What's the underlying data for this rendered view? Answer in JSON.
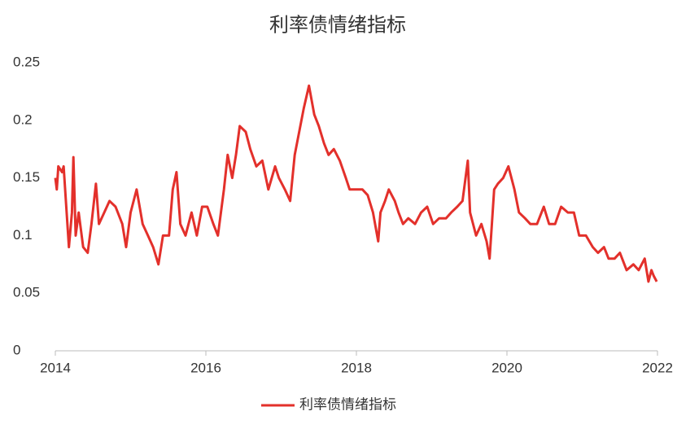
{
  "chart_data": {
    "type": "line",
    "title": "利率债情绪指标",
    "x": [
      2014.0,
      2014.02,
      2014.04,
      2014.09,
      2014.11,
      2014.15,
      2014.18,
      2014.22,
      2014.24,
      2014.27,
      2014.31,
      2014.37,
      2014.43,
      2014.48,
      2014.54,
      2014.58,
      2014.65,
      2014.72,
      2014.8,
      2014.89,
      2014.94,
      2015.0,
      2015.08,
      2015.16,
      2015.23,
      2015.3,
      2015.37,
      2015.43,
      2015.51,
      2015.56,
      2015.61,
      2015.66,
      2015.73,
      2015.81,
      2015.88,
      2015.95,
      2016.02,
      2016.1,
      2016.16,
      2016.24,
      2016.29,
      2016.35,
      2016.4,
      2016.45,
      2016.53,
      2016.59,
      2016.67,
      2016.75,
      2016.83,
      2016.92,
      2016.97,
      2017.05,
      2017.12,
      2017.18,
      2017.24,
      2017.3,
      2017.37,
      2017.44,
      2017.5,
      2017.57,
      2017.63,
      2017.7,
      2017.78,
      2017.86,
      2017.91,
      2018.0,
      2018.08,
      2018.15,
      2018.22,
      2018.29,
      2018.32,
      2018.38,
      2018.43,
      2018.51,
      2018.56,
      2018.62,
      2018.69,
      2018.78,
      2018.86,
      2018.94,
      2019.02,
      2019.1,
      2019.19,
      2019.26,
      2019.34,
      2019.41,
      2019.48,
      2019.51,
      2019.59,
      2019.66,
      2019.73,
      2019.77,
      2019.83,
      2019.88,
      2019.95,
      2020.02,
      2020.1,
      2020.16,
      2020.24,
      2020.31,
      2020.4,
      2020.49,
      2020.56,
      2020.64,
      2020.72,
      2020.81,
      2020.89,
      2020.96,
      2021.05,
      2021.14,
      2021.21,
      2021.29,
      2021.35,
      2021.43,
      2021.5,
      2021.59,
      2021.68,
      2021.75,
      2021.83,
      2021.88,
      2021.92,
      2021.95,
      2021.99
    ],
    "series": [
      {
        "name": "利率债情绪指标",
        "color": "#e3302b",
        "values": [
          0.15,
          0.14,
          0.16,
          0.155,
          0.16,
          0.12,
          0.09,
          0.12,
          0.168,
          0.1,
          0.12,
          0.09,
          0.085,
          0.11,
          0.145,
          0.11,
          0.12,
          0.13,
          0.125,
          0.11,
          0.09,
          0.12,
          0.14,
          0.11,
          0.1,
          0.09,
          0.075,
          0.1,
          0.1,
          0.14,
          0.155,
          0.11,
          0.1,
          0.12,
          0.1,
          0.125,
          0.125,
          0.11,
          0.1,
          0.14,
          0.17,
          0.15,
          0.17,
          0.195,
          0.19,
          0.175,
          0.16,
          0.165,
          0.14,
          0.16,
          0.15,
          0.14,
          0.13,
          0.17,
          0.19,
          0.21,
          0.23,
          0.205,
          0.195,
          0.18,
          0.17,
          0.175,
          0.165,
          0.15,
          0.14,
          0.14,
          0.14,
          0.135,
          0.12,
          0.095,
          0.12,
          0.13,
          0.14,
          0.13,
          0.12,
          0.11,
          0.115,
          0.11,
          0.12,
          0.125,
          0.11,
          0.115,
          0.115,
          0.12,
          0.125,
          0.13,
          0.165,
          0.12,
          0.1,
          0.11,
          0.095,
          0.08,
          0.14,
          0.145,
          0.15,
          0.16,
          0.14,
          0.12,
          0.115,
          0.11,
          0.11,
          0.125,
          0.11,
          0.11,
          0.125,
          0.12,
          0.12,
          0.1,
          0.1,
          0.09,
          0.085,
          0.09,
          0.08,
          0.08,
          0.085,
          0.07,
          0.075,
          0.07,
          0.08,
          0.06,
          0.07,
          0.065,
          0.06
        ]
      }
    ],
    "xlim": [
      2014,
      2022
    ],
    "xticks": [
      2014,
      2016,
      2018,
      2020,
      2022
    ],
    "ylim": [
      0,
      0.25
    ],
    "yticks": [
      0,
      0.05,
      0.1,
      0.15,
      0.2,
      0.25
    ],
    "legend": "bottom"
  }
}
